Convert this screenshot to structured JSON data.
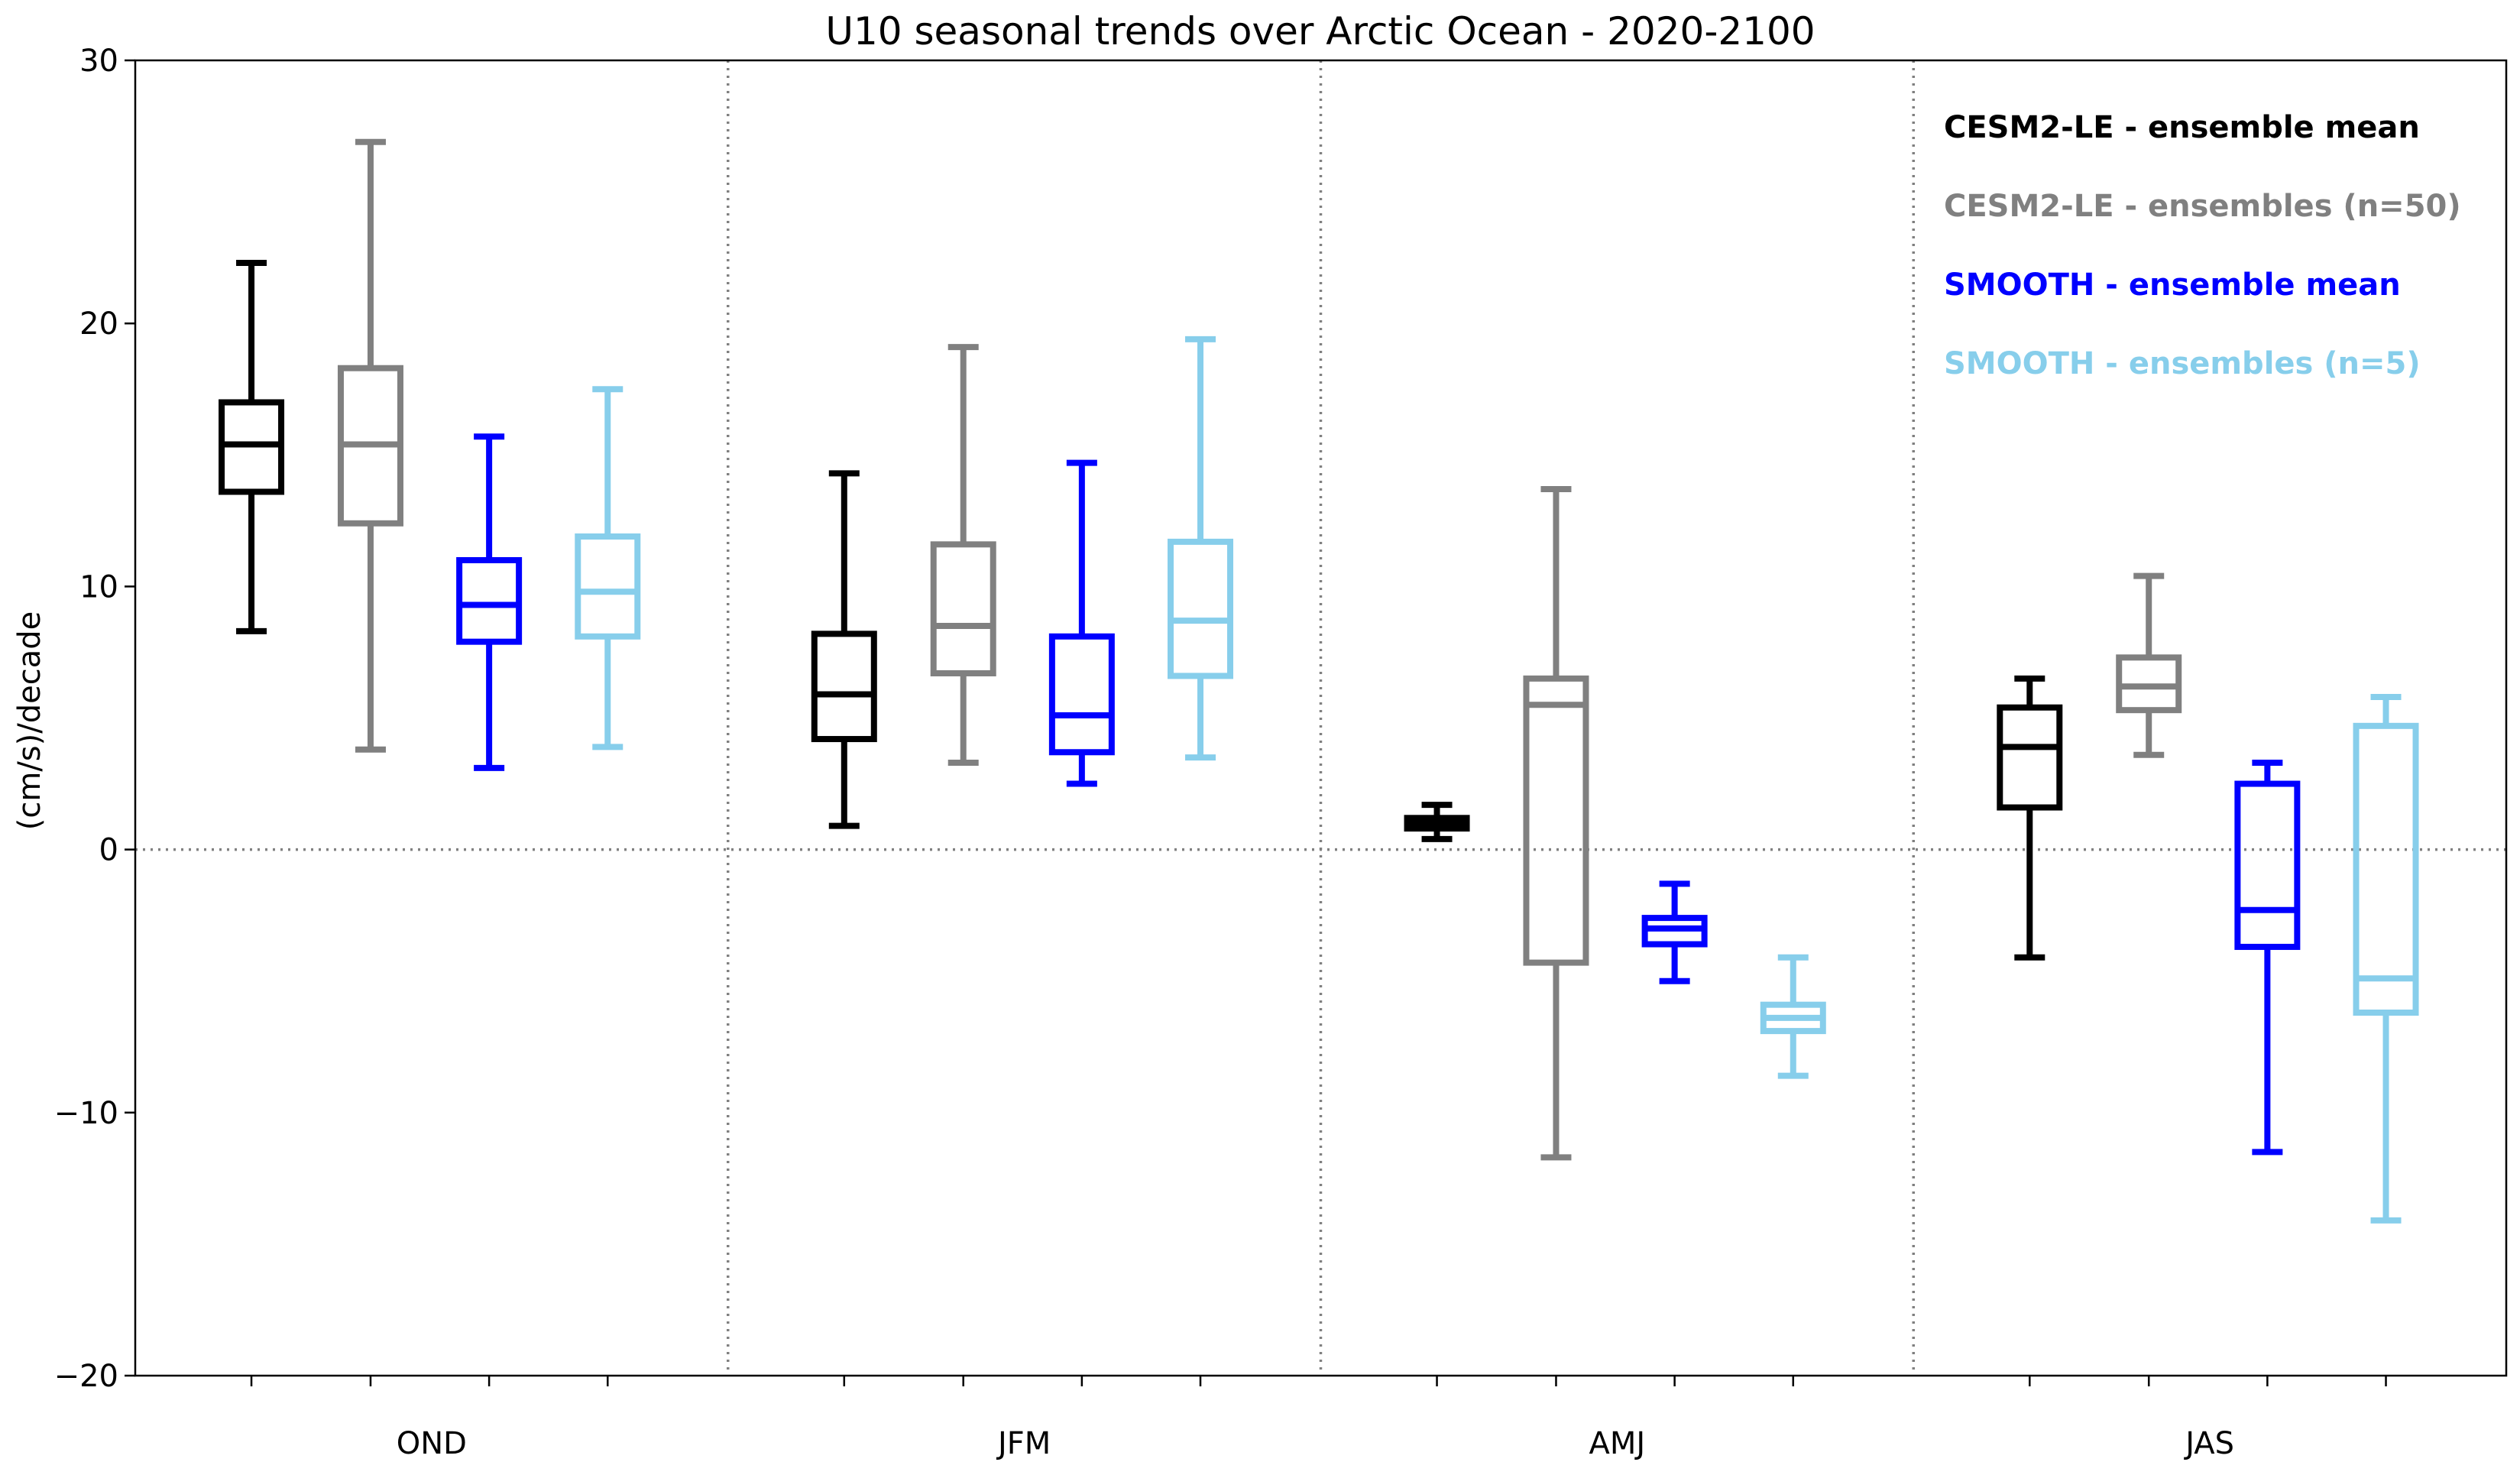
{
  "chart_data": {
    "type": "boxplot",
    "title": "U10 seasonal trends over Arctic Ocean - 2020-2100",
    "ylabel": "(cm/s)/decade",
    "xlabel": "",
    "ylim": [
      -20,
      30
    ],
    "yticks": [
      -20,
      -10,
      0,
      10,
      20,
      30
    ],
    "ytick_labels": [
      "−20",
      "−10",
      "0",
      "10",
      "20",
      "30"
    ],
    "grid": false,
    "zero_line": true,
    "separators": true,
    "legend_position": "top-right",
    "categories": [
      "OND",
      "JFM",
      "AMJ",
      "JAS"
    ],
    "series": [
      {
        "name": "CESM2-LE - ensemble mean",
        "color": "#000000",
        "boxes": [
          {
            "whislo": 8.3,
            "q1": 13.6,
            "med": 15.4,
            "q3": 17.0,
            "whishi": 22.3
          },
          {
            "whislo": 0.9,
            "q1": 4.2,
            "med": 5.9,
            "q3": 8.2,
            "whishi": 14.3
          },
          {
            "whislo": 0.4,
            "q1": 0.8,
            "med": 1.0,
            "q3": 1.2,
            "whishi": 1.7
          },
          {
            "whislo": -4.1,
            "q1": 1.6,
            "med": 3.9,
            "q3": 5.4,
            "whishi": 6.5
          }
        ]
      },
      {
        "name": "CESM2-LE - ensembles (n=50)",
        "color": "#808080",
        "boxes": [
          {
            "whislo": 3.8,
            "q1": 12.4,
            "med": 15.4,
            "q3": 18.3,
            "whishi": 26.9
          },
          {
            "whislo": 3.3,
            "q1": 6.7,
            "med": 8.5,
            "q3": 11.6,
            "whishi": 19.1
          },
          {
            "whislo": -11.7,
            "q1": -4.3,
            "med": 5.5,
            "q3": 6.5,
            "whishi": 13.7
          },
          {
            "whislo": 3.6,
            "q1": 5.3,
            "med": 6.2,
            "q3": 7.3,
            "whishi": 10.4
          }
        ]
      },
      {
        "name": "SMOOTH - ensemble mean",
        "color": "#0000ff",
        "boxes": [
          {
            "whislo": 3.1,
            "q1": 7.9,
            "med": 9.3,
            "q3": 11.0,
            "whishi": 15.7
          },
          {
            "whislo": 2.5,
            "q1": 3.7,
            "med": 5.1,
            "q3": 8.1,
            "whishi": 14.7
          },
          {
            "whislo": -5.0,
            "q1": -3.6,
            "med": -3.0,
            "q3": -2.6,
            "whishi": -1.3
          },
          {
            "whislo": -11.5,
            "q1": -3.7,
            "med": -2.3,
            "q3": 2.5,
            "whishi": 3.3
          }
        ]
      },
      {
        "name": "SMOOTH - ensembles (n=5)",
        "color": "#87ceeb",
        "boxes": [
          {
            "whislo": 3.9,
            "q1": 8.1,
            "med": 9.8,
            "q3": 11.9,
            "whishi": 17.5
          },
          {
            "whislo": 3.5,
            "q1": 6.6,
            "med": 8.7,
            "q3": 11.7,
            "whishi": 19.4
          },
          {
            "whislo": -8.6,
            "q1": -6.9,
            "med": -6.4,
            "q3": -5.9,
            "whishi": -4.1
          },
          {
            "whislo": -14.1,
            "q1": -6.2,
            "med": -4.9,
            "q3": 4.7,
            "whishi": 5.8
          }
        ]
      }
    ]
  }
}
